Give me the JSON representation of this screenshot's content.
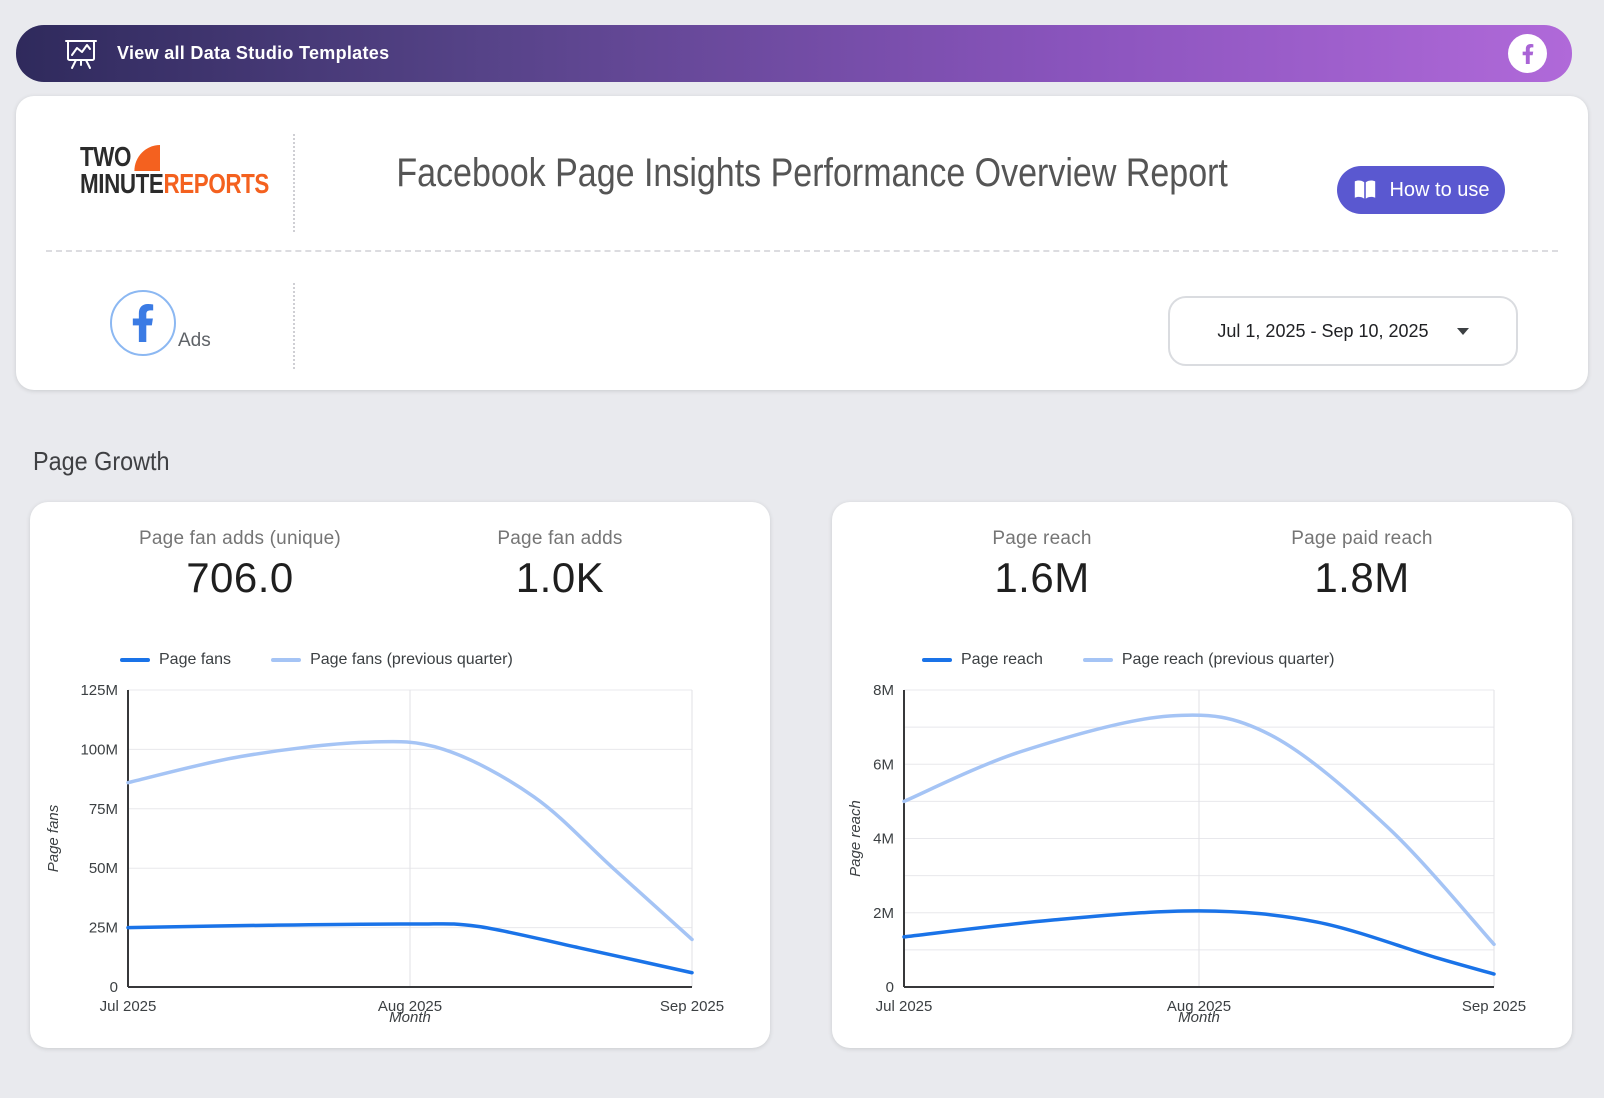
{
  "banner": {
    "label": "View all Data Studio Templates",
    "colors": {
      "gradient_from": "#2f2a5c",
      "gradient_to": "#b069d9"
    }
  },
  "icons": {
    "banner_left": "presentation-chart-icon",
    "banner_right": "facebook-icon",
    "how_to_use": "open-book-icon",
    "source": "facebook-icon",
    "date_range": "dropdown-arrow-icon"
  },
  "header": {
    "logo": {
      "line1": "TWO",
      "line2_dark": "MINUTE",
      "line2_accent": "REPORTS",
      "accent_color": "#f4611f"
    },
    "title": "Facebook Page Insights Performance Overview Report",
    "how_to_use": {
      "label": "How to use",
      "bg": "#5a58d0"
    },
    "source": {
      "label": "Ads"
    },
    "date_range": {
      "value": "Jul 1, 2025 - Sep 10, 2025"
    }
  },
  "section": {
    "title": "Page Growth"
  },
  "chart_data": [
    {
      "type": "line",
      "scorecards": [
        {
          "label": "Page fan adds (unique)",
          "value": "706.0"
        },
        {
          "label": "Page fan adds",
          "value": "1.0K"
        }
      ],
      "xlabel": "Month",
      "ylabel": "Page fans",
      "x_ticks": [
        "Jul 2025",
        "Aug 2025",
        "Sep 2025"
      ],
      "ymax_m": 125,
      "ylim_labels": [
        "0",
        "125M"
      ],
      "grid": true,
      "legend_position": "top",
      "y_ticks": [
        {
          "v": 0,
          "label": "0"
        },
        {
          "v": 25,
          "label": "25M"
        },
        {
          "v": 50,
          "label": "50M"
        },
        {
          "v": 75,
          "label": "75M"
        },
        {
          "v": 100,
          "label": "100M"
        },
        {
          "v": 125,
          "label": "125M"
        }
      ],
      "series": [
        {
          "name": "Page fans",
          "color": "#1a73e8",
          "x_frac": [
            0,
            0.25,
            0.5,
            0.62,
            0.8,
            1
          ],
          "values_m": [
            25,
            26,
            26.5,
            25.5,
            16.5,
            6
          ]
        },
        {
          "name": "Page fans (previous quarter)",
          "color": "#a5c4f5",
          "x_frac": [
            0,
            0.2,
            0.42,
            0.56,
            0.72,
            0.86,
            1
          ],
          "values_m": [
            86,
            97,
            103,
            100,
            80,
            50,
            20
          ]
        }
      ]
    },
    {
      "type": "line",
      "scorecards": [
        {
          "label": "Page reach",
          "value": "1.6M"
        },
        {
          "label": "Page paid reach",
          "value": "1.8M"
        }
      ],
      "xlabel": "Month",
      "ylabel": "Page reach",
      "x_ticks": [
        "Jul 2025",
        "Aug 2025",
        "Sep 2025"
      ],
      "ymax_m": 8,
      "ylim_labels": [
        "0",
        "8M"
      ],
      "grid": true,
      "minor_step_m": 1,
      "legend_position": "top",
      "y_ticks": [
        {
          "v": 0,
          "label": "0"
        },
        {
          "v": 2,
          "label": "2M"
        },
        {
          "v": 4,
          "label": "4M"
        },
        {
          "v": 6,
          "label": "6M"
        },
        {
          "v": 8,
          "label": "8M"
        }
      ],
      "series": [
        {
          "name": "Page reach",
          "color": "#1a73e8",
          "x_frac": [
            0,
            0.25,
            0.5,
            0.7,
            0.9,
            1
          ],
          "values_m": [
            1.35,
            1.8,
            2.05,
            1.75,
            0.8,
            0.35
          ]
        },
        {
          "name": "Page reach (previous quarter)",
          "color": "#a5c4f5",
          "x_frac": [
            0,
            0.2,
            0.45,
            0.62,
            0.82,
            1
          ],
          "values_m": [
            5.0,
            6.35,
            7.3,
            6.8,
            4.3,
            1.15
          ]
        }
      ]
    }
  ]
}
